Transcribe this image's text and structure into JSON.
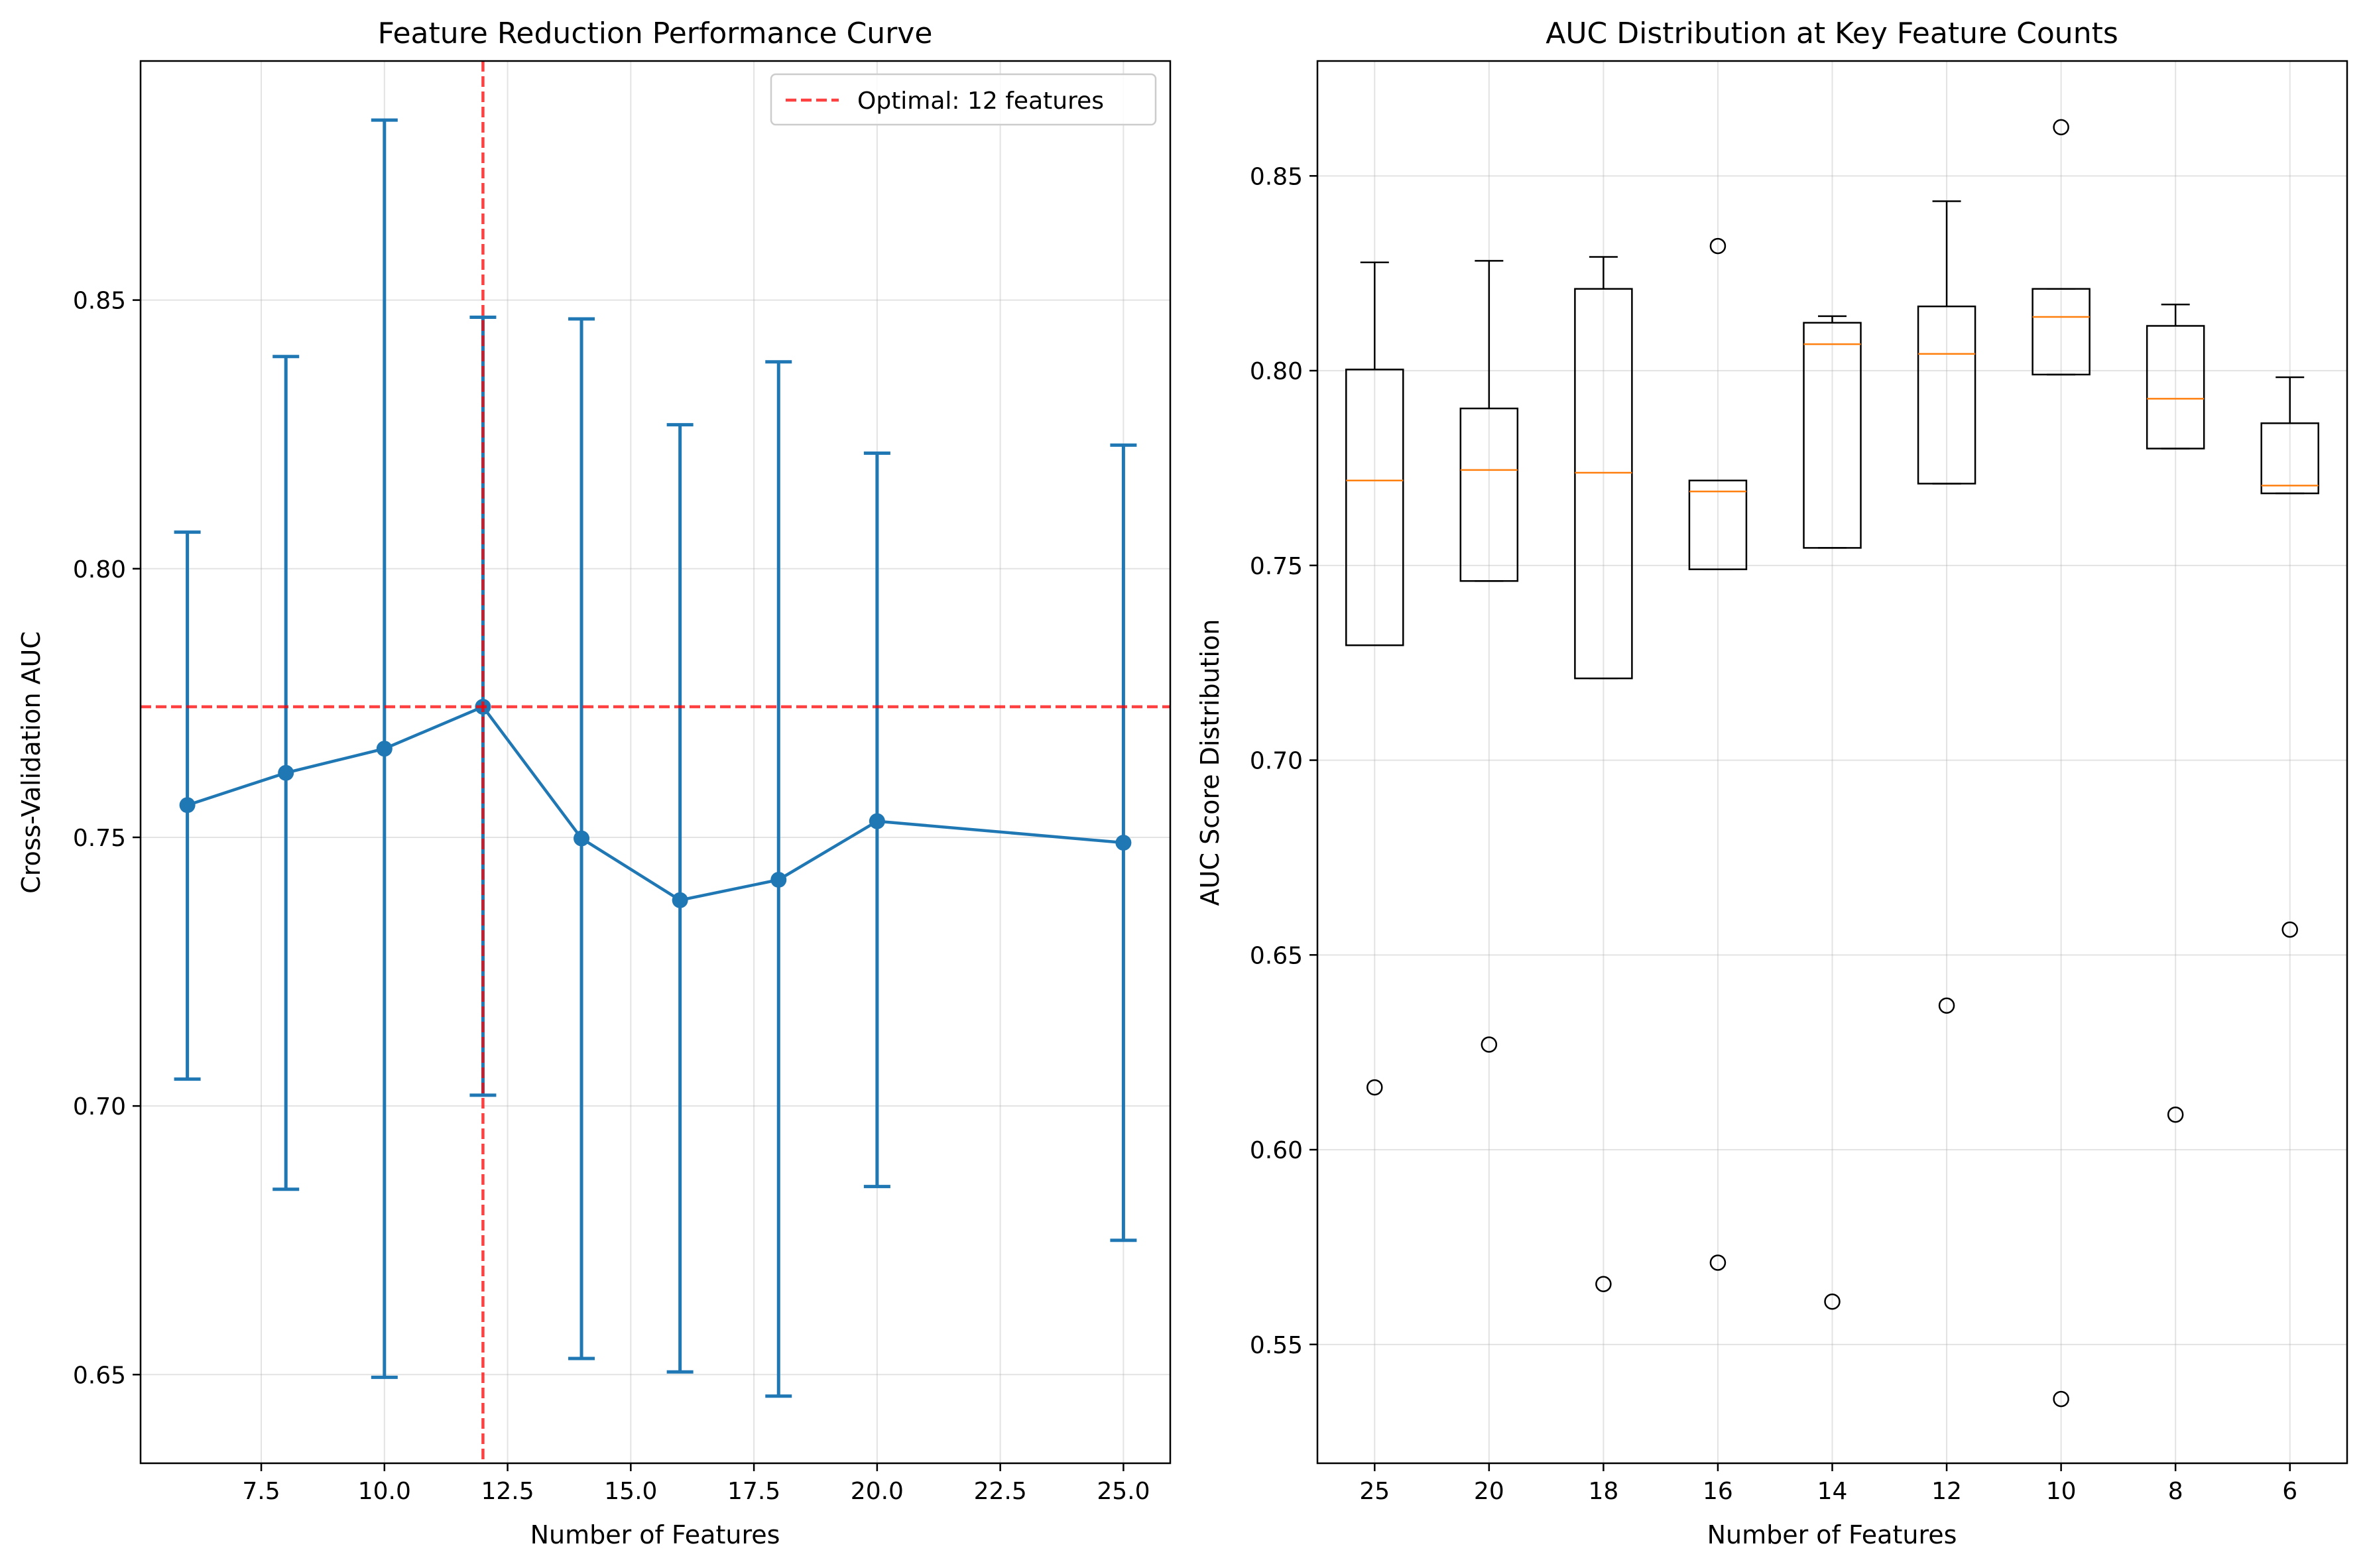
{
  "chart_data": [
    {
      "type": "line",
      "title": "Feature Reduction Performance Curve",
      "xlabel": "Number of Features",
      "ylabel": "Cross-Validation AUC",
      "xlim": [
        5.05,
        25.95
      ],
      "ylim": [
        0.6335,
        0.8945
      ],
      "xticks": [
        "7.5",
        "10.0",
        "12.5",
        "15.0",
        "17.5",
        "20.0",
        "22.5",
        "25.0"
      ],
      "xtick_values": [
        7.5,
        10.0,
        12.5,
        15.0,
        17.5,
        20.0,
        22.5,
        25.0
      ],
      "yticks": [
        "0.65",
        "0.70",
        "0.75",
        "0.80",
        "0.85"
      ],
      "ytick_values": [
        0.65,
        0.7,
        0.75,
        0.8,
        0.85
      ],
      "grid": true,
      "legend_position": "top-right",
      "color": "#1f77b4",
      "series": [
        {
          "x": [
            6,
            8,
            10,
            12,
            14,
            16,
            18,
            20,
            25
          ],
          "y": [
            0.756,
            0.762,
            0.7665,
            0.7743,
            0.7498,
            0.7383,
            0.7421,
            0.753,
            0.749
          ],
          "yerr_low": [
            0.705,
            0.6845,
            0.6495,
            0.702,
            0.653,
            0.6505,
            0.646,
            0.685,
            0.675
          ],
          "yerr_high": [
            0.8068,
            0.8395,
            0.8835,
            0.8468,
            0.8465,
            0.8268,
            0.8385,
            0.8215,
            0.823
          ]
        }
      ],
      "reference_lines": {
        "vertical_x": 12,
        "horizontal_y": 0.7743,
        "color": "#ff0000",
        "legend_label": "Optimal: 12 features"
      }
    },
    {
      "type": "box",
      "title": "AUC Distribution at Key Feature Counts",
      "xlabel": "Number of Features",
      "ylabel": "AUC Score Distribution",
      "ylim": [
        0.5195,
        0.8795
      ],
      "yticks": [
        "0.55",
        "0.60",
        "0.65",
        "0.70",
        "0.75",
        "0.80",
        "0.85"
      ],
      "ytick_values": [
        0.55,
        0.6,
        0.65,
        0.7,
        0.75,
        0.8,
        0.85
      ],
      "grid": true,
      "median_color": "#ff7f0e",
      "categories": [
        "25",
        "20",
        "18",
        "16",
        "14",
        "12",
        "10",
        "8",
        "6"
      ],
      "boxes": [
        {
          "whisker_low": 0.7295,
          "q1": 0.7295,
          "median": 0.7718,
          "q3": 0.8003,
          "whisker_high": 0.8278,
          "outliers": [
            0.616
          ]
        },
        {
          "whisker_low": 0.746,
          "q1": 0.746,
          "median": 0.7745,
          "q3": 0.7903,
          "whisker_high": 0.8282,
          "outliers": [
            0.627
          ]
        },
        {
          "whisker_low": 0.721,
          "q1": 0.721,
          "median": 0.7738,
          "q3": 0.821,
          "whisker_high": 0.8292,
          "outliers": [
            0.5655
          ]
        },
        {
          "whisker_low": 0.749,
          "q1": 0.749,
          "median": 0.769,
          "q3": 0.7718,
          "whisker_high": 0.7718,
          "outliers": [
            0.832,
            0.571
          ]
        },
        {
          "whisker_low": 0.7545,
          "q1": 0.7545,
          "median": 0.8068,
          "q3": 0.8123,
          "whisker_high": 0.814,
          "outliers": [
            0.561
          ]
        },
        {
          "whisker_low": 0.771,
          "q1": 0.771,
          "median": 0.8043,
          "q3": 0.8165,
          "whisker_high": 0.8435,
          "outliers": [
            0.637
          ]
        },
        {
          "whisker_low": 0.799,
          "q1": 0.799,
          "median": 0.8138,
          "q3": 0.821,
          "whisker_high": 0.821,
          "outliers": [
            0.8625,
            0.536
          ]
        },
        {
          "whisker_low": 0.78,
          "q1": 0.78,
          "median": 0.7928,
          "q3": 0.8115,
          "whisker_high": 0.817,
          "outliers": [
            0.609
          ]
        },
        {
          "whisker_low": 0.7685,
          "q1": 0.7685,
          "median": 0.7705,
          "q3": 0.7865,
          "whisker_high": 0.7983,
          "outliers": [
            0.6565
          ]
        }
      ]
    }
  ]
}
